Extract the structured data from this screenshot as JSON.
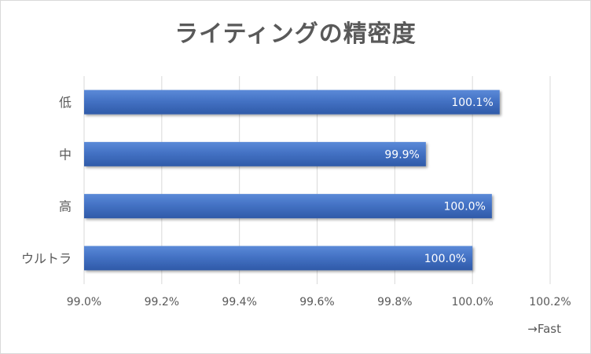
{
  "chart_data": {
    "type": "bar",
    "orientation": "horizontal",
    "title": "ライティングの精密度",
    "categories": [
      "低",
      "中",
      "高",
      "ウルトラ"
    ],
    "values": [
      100.07,
      99.88,
      100.05,
      100.0
    ],
    "data_labels": [
      "100.1%",
      "99.9%",
      "100.0%",
      "100.0%"
    ],
    "x_ticks": [
      "99.0%",
      "99.2%",
      "99.4%",
      "99.6%",
      "99.8%",
      "100.0%",
      "100.2%"
    ],
    "xlim": [
      99.0,
      100.2
    ],
    "x_note": "→Fast",
    "grid": true,
    "legend": "none",
    "bar_color": "#4472c4"
  }
}
